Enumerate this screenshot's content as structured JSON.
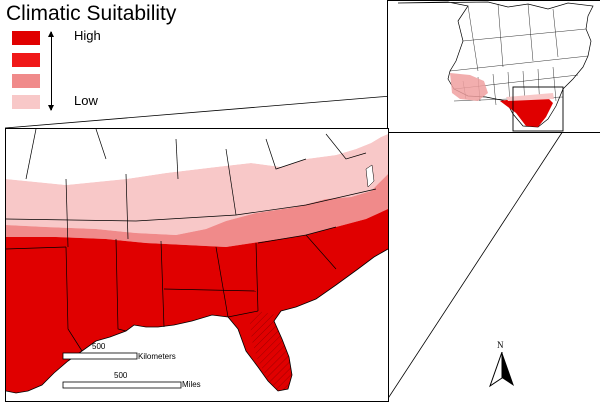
{
  "legend": {
    "title": "Climatic Suitability",
    "high_label": "High",
    "low_label": "Low",
    "classes": [
      {
        "name": "class-1",
        "color": "#e00000"
      },
      {
        "name": "class-2",
        "color": "#f01818"
      },
      {
        "name": "class-3",
        "color": "#f08a8a"
      },
      {
        "name": "class-4",
        "color": "#f8c8c8"
      }
    ]
  },
  "scalebar": {
    "km_value": "500",
    "km_unit": "Kilometers",
    "mi_value": "500",
    "mi_unit": "Miles"
  },
  "north_arrow": {
    "label": "N"
  },
  "colors": {
    "high": "#e00000",
    "low": "#f8c8c8",
    "border": "#000000"
  }
}
